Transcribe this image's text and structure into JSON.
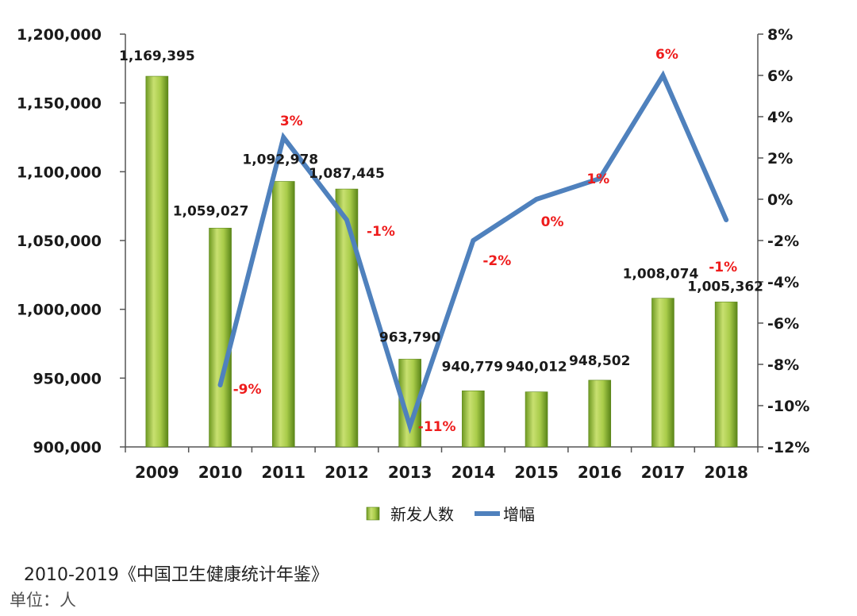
{
  "chart_data": {
    "type": "bar+line",
    "categories": [
      "2009",
      "2010",
      "2011",
      "2012",
      "2013",
      "2014",
      "2015",
      "2016",
      "2017",
      "2018"
    ],
    "series": [
      {
        "name": "新发人数",
        "type": "bar",
        "axis": "left",
        "values": [
          1169395,
          1059027,
          1092978,
          1087445,
          963790,
          940779,
          940012,
          948502,
          1008074,
          1005362
        ],
        "labels": [
          "1,169,395",
          "1,059,027",
          "1,092,978",
          "1,087,445",
          "963,790",
          "940,779",
          "940,012",
          "948,502",
          "1,008,074",
          "1,005,362"
        ]
      },
      {
        "name": "增幅",
        "type": "line",
        "axis": "right",
        "values": [
          null,
          -9,
          3,
          -1,
          -11,
          -2,
          0,
          1,
          6,
          -1
        ],
        "labels": [
          "",
          "-9%",
          "3%",
          "-1%",
          "-11%",
          "-2%",
          "0%",
          "1%",
          "6%",
          "-1%"
        ]
      }
    ],
    "y_left": {
      "range": [
        900000,
        1200000
      ],
      "ticks": [
        "900,000",
        "950,000",
        "1,000,000",
        "1,050,000",
        "1,100,000",
        "1,150,000",
        "1,200,000"
      ],
      "tick_values": [
        900000,
        950000,
        1000000,
        1050000,
        1100000,
        1150000,
        1200000
      ]
    },
    "y_right": {
      "range": [
        -12,
        8
      ],
      "ticks": [
        "-12%",
        "-10%",
        "-8%",
        "-6%",
        "-4%",
        "-2%",
        "0%",
        "2%",
        "4%",
        "6%",
        "8%"
      ],
      "tick_values": [
        -12,
        -10,
        -8,
        -6,
        -4,
        -2,
        0,
        2,
        4,
        6,
        8
      ]
    },
    "legend": [
      "新发人数",
      "增幅"
    ],
    "legend_position": "bottom",
    "colors": {
      "bar_light": "#c4dc6c",
      "bar_dark": "#5e8a1c",
      "line": "#4f81bd",
      "pct_label": "#ee1c1c"
    }
  },
  "footer": {
    "source": "2010-2019《中国卫生健康统计年鉴》",
    "unit": "单位：人"
  }
}
